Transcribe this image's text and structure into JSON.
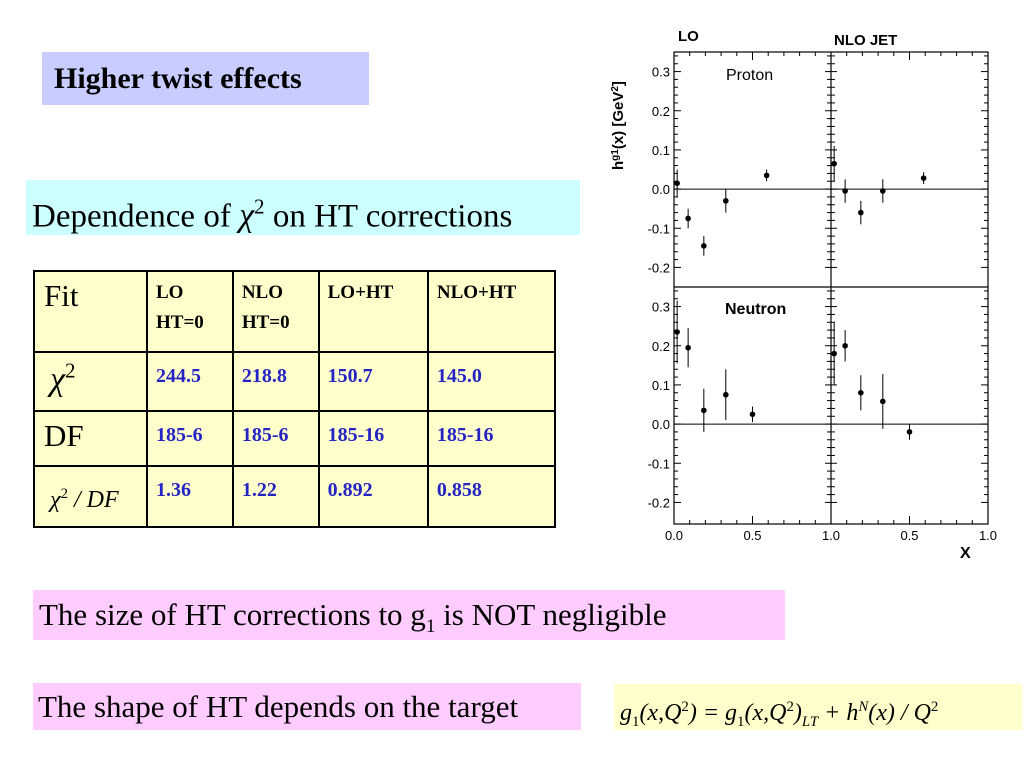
{
  "slide": {
    "title": "Higher twist effects",
    "dependence": {
      "prefix": "Dependence of ",
      "chi_symbol": "χ",
      "chi_power": "2",
      "suffix": " on HT corrections"
    },
    "size_note": {
      "prefix": "The size of  HT corrections to g",
      "sub": "1",
      "suffix": " is NOT negligible"
    },
    "shape_note": "The shape of HT depends on the target",
    "formula": {
      "g": "g",
      "one": "1",
      "open": "(x,Q",
      "two": "2",
      "close": ") = g",
      "one2": "1",
      "open2": "(x,Q",
      "two2": "2",
      "close2": ")",
      "lt": "LT",
      "plus": " + h",
      "N": "N",
      "rest": "(x) / Q",
      "two3": "2"
    }
  },
  "table": {
    "header": {
      "fit": "Fit",
      "col1a": "LO",
      "col1b": "HT=0",
      "col2a": "NLO",
      "col2b": "HT=0",
      "col3": "LO+HT",
      "col4": "NLO+HT"
    },
    "rows": [
      {
        "label_chi": "χ",
        "label_pow": "2",
        "v1": "244.5",
        "v2": "218.8",
        "v3": "150.7",
        "v4": "145.0"
      },
      {
        "label": "DF",
        "v1": "185-6",
        "v2": "185-6",
        "v3": "185-16",
        "v4": "185-16"
      },
      {
        "label_chi": "χ",
        "label_pow": "2",
        "label_rest": " / DF",
        "v1": "1.36",
        "v2": "1.22",
        "v3": "0.892",
        "v4": "0.858"
      }
    ]
  },
  "chart_data": {
    "type": "scatter",
    "ylabel": "h^{g1}(x) [GeV^2]",
    "xlabel": "X",
    "column_labels": [
      "LO",
      "NLO  JET"
    ],
    "panel_labels": [
      "Proton",
      "Neutron"
    ],
    "ylim": [
      -0.25,
      0.35
    ],
    "xlim": [
      0.0,
      1.0
    ],
    "yticks": [
      "0.3",
      "0.2",
      "0.1",
      "0.0",
      "-0.1",
      "-0.2"
    ],
    "xticks": [
      "0.0",
      "0.5",
      "1.0",
      "0.5",
      "1.0"
    ],
    "panels": [
      {
        "name": "Proton LO",
        "points": [
          {
            "x": 0.02,
            "y": 0.015,
            "err": 0.035
          },
          {
            "x": 0.09,
            "y": -0.075,
            "err": 0.025
          },
          {
            "x": 0.19,
            "y": -0.145,
            "err": 0.025
          },
          {
            "x": 0.33,
            "y": -0.03,
            "err": 0.03
          },
          {
            "x": 0.59,
            "y": 0.035,
            "err": 0.015
          }
        ]
      },
      {
        "name": "Proton NLO JET",
        "points": [
          {
            "x": 0.02,
            "y": 0.065,
            "err": 0.045
          },
          {
            "x": 0.09,
            "y": -0.005,
            "err": 0.03
          },
          {
            "x": 0.19,
            "y": -0.06,
            "err": 0.03
          },
          {
            "x": 0.33,
            "y": -0.005,
            "err": 0.03
          },
          {
            "x": 0.59,
            "y": 0.028,
            "err": 0.015
          }
        ]
      },
      {
        "name": "Neutron LO",
        "points": [
          {
            "x": 0.02,
            "y": 0.235,
            "err": 0.08
          },
          {
            "x": 0.09,
            "y": 0.195,
            "err": 0.05
          },
          {
            "x": 0.19,
            "y": 0.035,
            "err": 0.055
          },
          {
            "x": 0.33,
            "y": 0.075,
            "err": 0.065
          },
          {
            "x": 0.5,
            "y": 0.025,
            "err": 0.02
          }
        ]
      },
      {
        "name": "Neutron NLO JET",
        "points": [
          {
            "x": 0.02,
            "y": 0.18,
            "err": 0.08
          },
          {
            "x": 0.09,
            "y": 0.2,
            "err": 0.04
          },
          {
            "x": 0.19,
            "y": 0.08,
            "err": 0.045
          },
          {
            "x": 0.33,
            "y": 0.058,
            "err": 0.07
          },
          {
            "x": 0.5,
            "y": -0.02,
            "err": 0.02
          }
        ]
      }
    ]
  }
}
